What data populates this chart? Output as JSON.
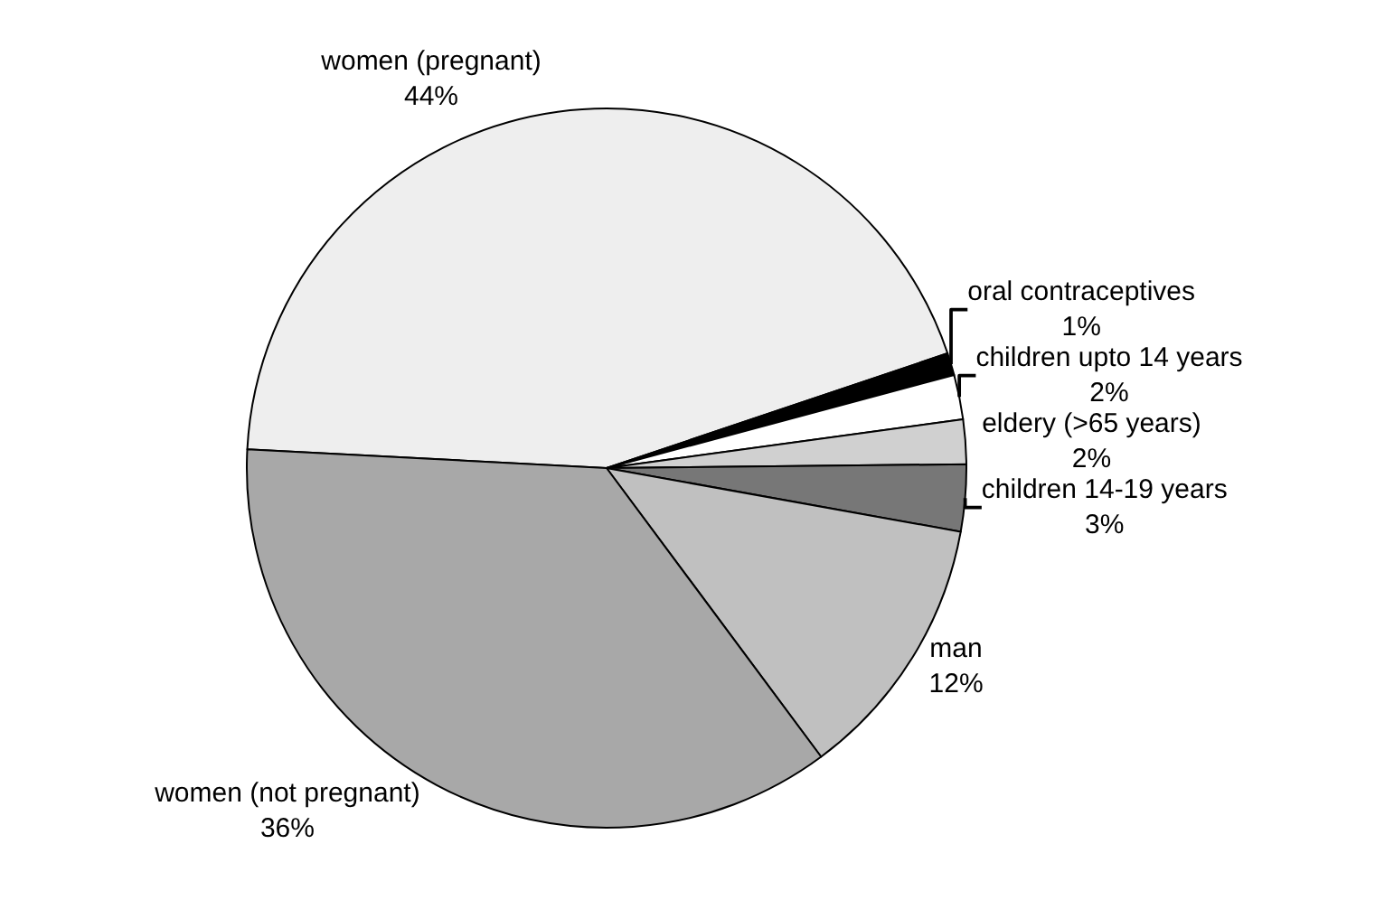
{
  "chart_data": {
    "type": "pie",
    "categories": [
      "women (pregnant)",
      "oral contraceptives",
      "children upto 14 years",
      "eldery (>65 years)",
      "children 14-19 years",
      "man",
      "women (not pregnant)"
    ],
    "values": [
      44,
      1,
      2,
      2,
      3,
      12,
      36
    ],
    "value_labels": [
      "44%",
      "1%",
      "2%",
      "2%",
      "3%",
      "12%",
      "36%"
    ],
    "colors": [
      "#eeeeee",
      "#000000",
      "#ffffff",
      "#d0d0d0",
      "#777777",
      "#c0c0c0",
      "#a8a8a8"
    ],
    "legend": false
  }
}
